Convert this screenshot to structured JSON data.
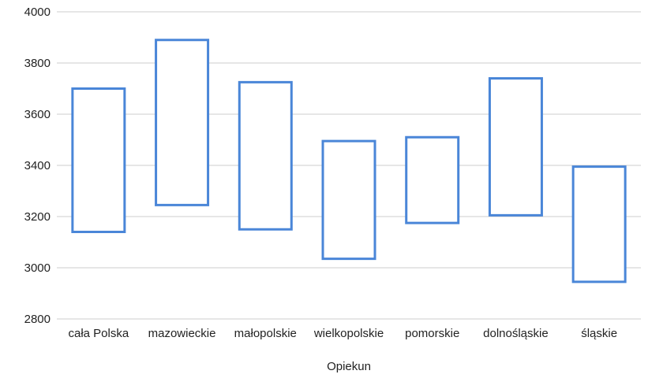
{
  "chart_data": {
    "type": "bar",
    "subtype": "floating-range",
    "title": "",
    "xlabel": "Opiekun",
    "ylabel": "",
    "ylim": [
      2800,
      4000
    ],
    "yticks": [
      2800,
      3000,
      3200,
      3400,
      3600,
      3800,
      4000
    ],
    "grid": true,
    "legend": "none",
    "color": "#4a86d8",
    "categories": [
      "cała Polska",
      "mazowieckie",
      "małopolskie",
      "wielkopolskie",
      "pomorskie",
      "dolnośląskie",
      "śląskie"
    ],
    "series": [
      {
        "low": [
          3140,
          3245,
          3150,
          3035,
          3175,
          3205,
          2945
        ],
        "high": [
          3700,
          3890,
          3725,
          3495,
          3510,
          3740,
          3395
        ]
      }
    ]
  }
}
